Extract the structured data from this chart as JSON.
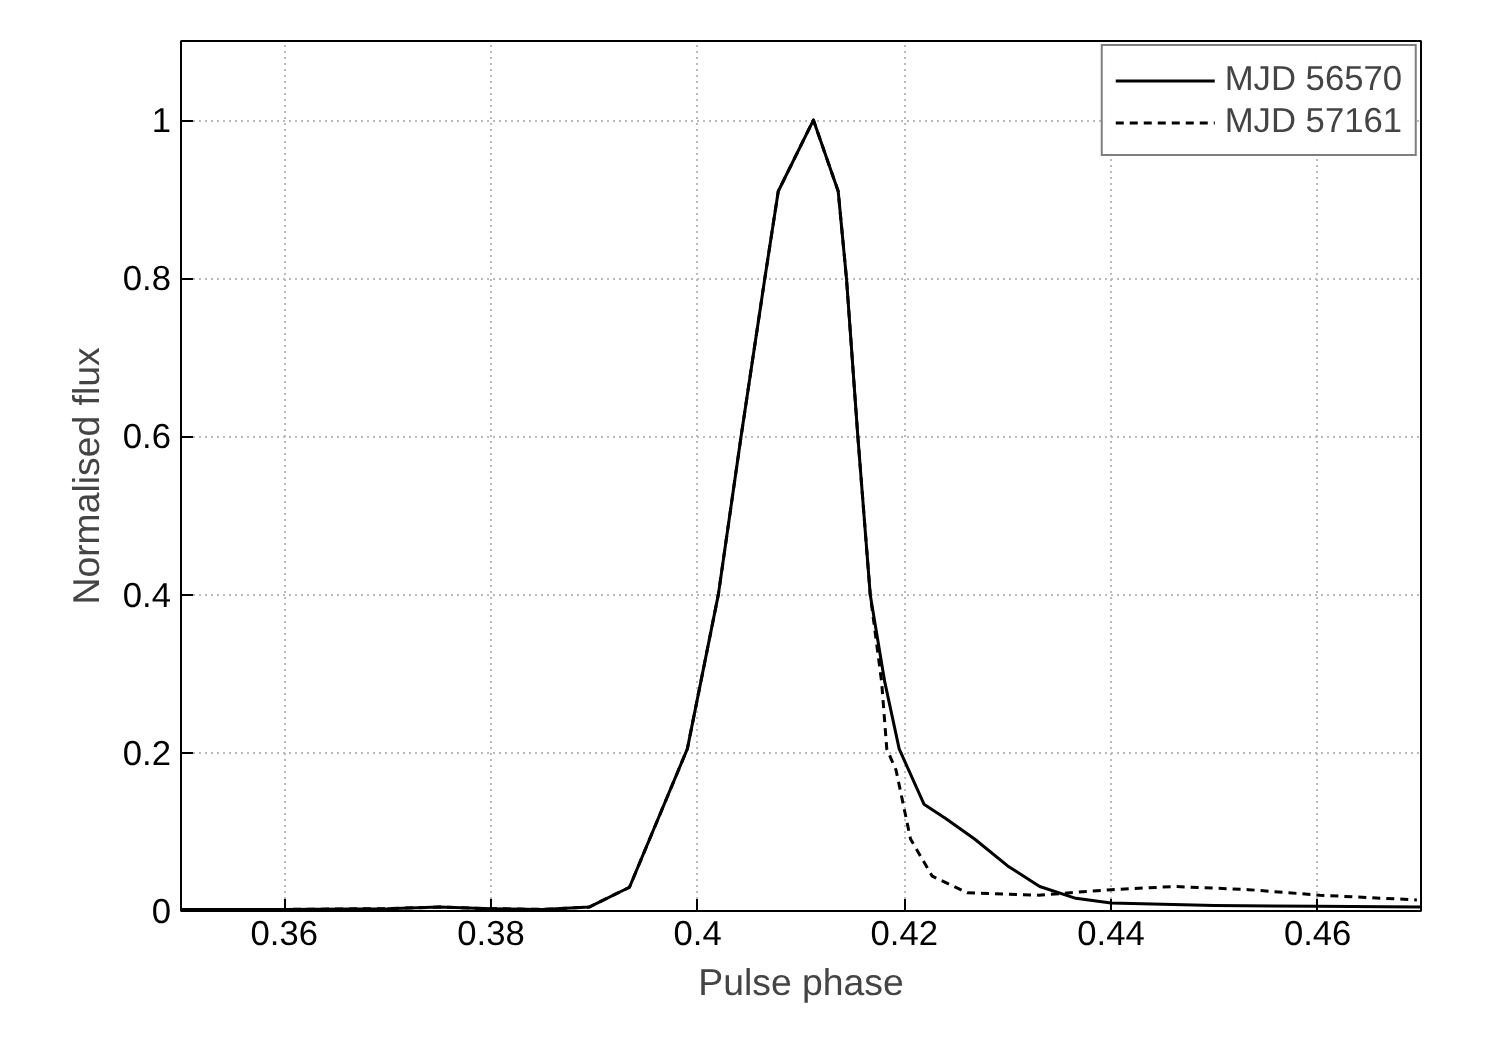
{
  "chart_data": {
    "type": "line",
    "xlabel": "Pulse phase",
    "ylabel": "Normalised flux",
    "xlim": [
      0.35,
      0.47
    ],
    "ylim": [
      0,
      1.1
    ],
    "xticks": [
      0.36,
      0.38,
      {
        "value": 0.4,
        "label": "0.4"
      },
      0.42,
      0.44,
      0.46
    ],
    "yticks": [
      0,
      0.2,
      0.4,
      0.6,
      0.8,
      1
    ],
    "grid": true,
    "legend": "top right",
    "series": [
      {
        "name": "MJD 56570",
        "color": "#000000",
        "line_style": "solid",
        "x": [
          0.35,
          0.36,
          0.37,
          0.375,
          0.38,
          0.385,
          0.3895,
          0.3934,
          0.399,
          0.402,
          0.4042,
          0.4065,
          0.4078,
          0.4112,
          0.4136,
          0.4144,
          0.4155,
          0.4167,
          0.4181,
          0.4195,
          0.4219,
          0.424,
          0.4268,
          0.43,
          0.4331,
          0.4366,
          0.44,
          0.45,
          0.46,
          0.47
        ],
        "values": [
          0.002,
          0.002,
          0.003,
          0.005,
          0.003,
          0.002,
          0.005,
          0.03,
          0.205,
          0.4,
          0.6,
          0.8,
          0.91,
          1.0,
          0.91,
          0.8,
          0.6,
          0.4,
          0.29,
          0.205,
          0.135,
          0.117,
          0.091,
          0.057,
          0.031,
          0.016,
          0.01,
          0.007,
          0.006,
          0.005
        ]
      },
      {
        "name": "MJD 57161",
        "color": "#000000",
        "line_style": "dashed",
        "x": [
          0.35,
          0.36,
          0.37,
          0.375,
          0.38,
          0.385,
          0.3895,
          0.3934,
          0.399,
          0.402,
          0.4042,
          0.4065,
          0.4078,
          0.4112,
          0.4136,
          0.4144,
          0.4155,
          0.4167,
          0.4178,
          0.4183,
          0.4192,
          0.4206,
          0.4227,
          0.4261,
          0.433,
          0.44,
          0.4462,
          0.4533,
          0.4602,
          0.4696
        ],
        "values": [
          0.002,
          0.002,
          0.003,
          0.005,
          0.003,
          0.002,
          0.005,
          0.03,
          0.205,
          0.4,
          0.6,
          0.8,
          0.91,
          1.0,
          0.91,
          0.8,
          0.6,
          0.4,
          0.29,
          0.205,
          0.178,
          0.091,
          0.044,
          0.023,
          0.02,
          0.027,
          0.031,
          0.027,
          0.02,
          0.014
        ]
      }
    ]
  }
}
